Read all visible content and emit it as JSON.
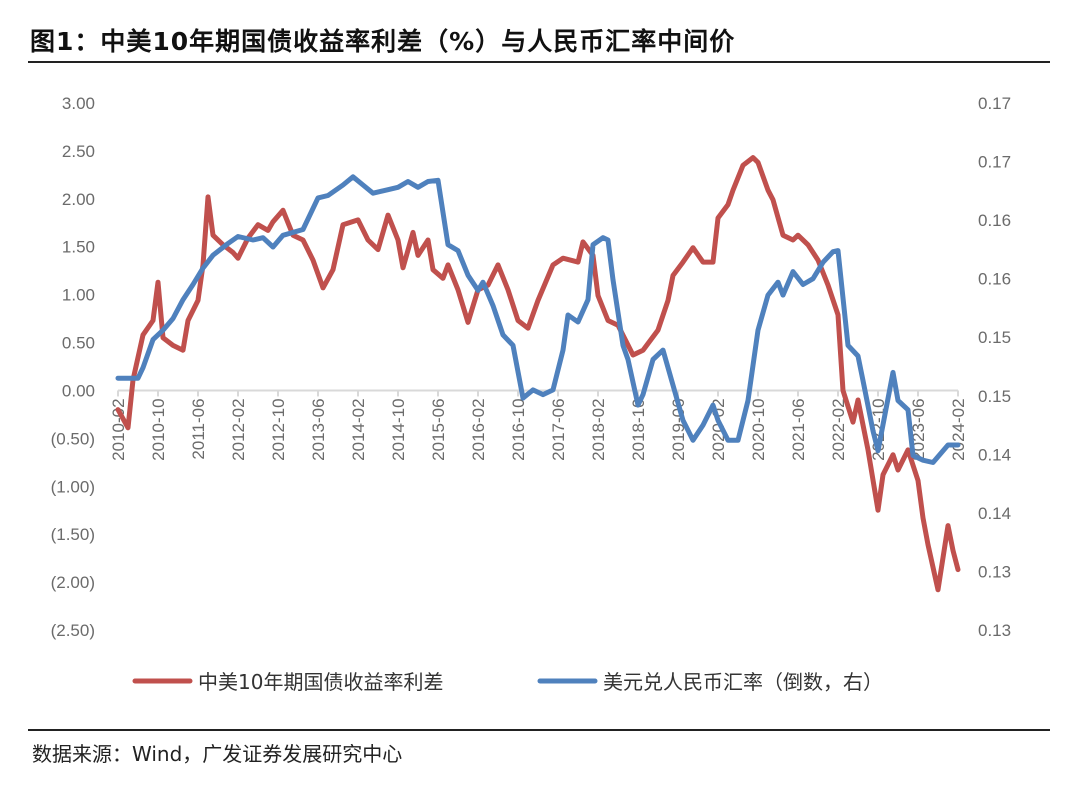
{
  "title": "图1：中美10年期国债收益率利差（%）与人民币汇率中间价",
  "source": "数据来源：Wind，广发证券发展研究中心",
  "chart_data": {
    "type": "line",
    "title": "",
    "xlabel": "",
    "ylabel": "",
    "grid": false,
    "legend_position": "bottom",
    "x_ticks": [
      "2010-02",
      "2010-10",
      "2011-06",
      "2012-02",
      "2012-10",
      "2013-06",
      "2014-02",
      "2014-10",
      "2015-06",
      "2016-02",
      "2016-10",
      "2017-06",
      "2018-02",
      "2018-10",
      "2019-06",
      "2020-02",
      "2020-10",
      "2021-06",
      "2022-02",
      "2022-10",
      "2023-06",
      "2024-02"
    ],
    "y_left": {
      "ylim": [
        -2.5,
        3.0
      ],
      "tick_labels": [
        "3.00",
        "2.50",
        "2.00",
        "1.50",
        "1.00",
        "0.50",
        "0.00",
        "(0.50)",
        "(1.00)",
        "(1.50)",
        "(2.00)",
        "(2.50)"
      ]
    },
    "y_right": {
      "ylim": [
        0.125,
        0.17
      ],
      "tick_labels": [
        "0.17",
        "0.17",
        "0.16",
        "0.16",
        "0.15",
        "0.15",
        "0.14",
        "0.14",
        "0.13",
        "0.13"
      ]
    },
    "series": [
      {
        "name": "中美10年期国债收益率利差",
        "axis": "left",
        "color": "#c0504d",
        "points": [
          [
            "2010-02",
            -0.2
          ],
          [
            "2010-04",
            -0.39
          ],
          [
            "2010-05",
            0.11
          ],
          [
            "2010-07",
            0.58
          ],
          [
            "2010-09",
            0.73
          ],
          [
            "2010-10",
            1.13
          ],
          [
            "2010-11",
            0.55
          ],
          [
            "2011-01",
            0.47
          ],
          [
            "2011-03",
            0.42
          ],
          [
            "2011-04",
            0.73
          ],
          [
            "2011-06",
            0.94
          ],
          [
            "2011-07",
            1.31
          ],
          [
            "2011-08",
            2.02
          ],
          [
            "2011-09",
            1.62
          ],
          [
            "2011-11",
            1.52
          ],
          [
            "2012-01",
            1.44
          ],
          [
            "2012-02",
            1.38
          ],
          [
            "2012-04",
            1.59
          ],
          [
            "2012-06",
            1.73
          ],
          [
            "2012-08",
            1.67
          ],
          [
            "2012-09",
            1.76
          ],
          [
            "2012-11",
            1.88
          ],
          [
            "2013-01",
            1.62
          ],
          [
            "2013-03",
            1.57
          ],
          [
            "2013-05",
            1.36
          ],
          [
            "2013-07",
            1.07
          ],
          [
            "2013-09",
            1.26
          ],
          [
            "2013-11",
            1.73
          ],
          [
            "2014-02",
            1.78
          ],
          [
            "2014-04",
            1.57
          ],
          [
            "2014-06",
            1.47
          ],
          [
            "2014-08",
            1.83
          ],
          [
            "2014-10",
            1.57
          ],
          [
            "2014-11",
            1.28
          ],
          [
            "2015-01",
            1.65
          ],
          [
            "2015-02",
            1.41
          ],
          [
            "2015-04",
            1.57
          ],
          [
            "2015-05",
            1.26
          ],
          [
            "2015-07",
            1.17
          ],
          [
            "2015-08",
            1.31
          ],
          [
            "2015-10",
            1.05
          ],
          [
            "2015-12",
            0.71
          ],
          [
            "2016-02",
            1.05
          ],
          [
            "2016-04",
            1.1
          ],
          [
            "2016-06",
            1.31
          ],
          [
            "2016-08",
            1.05
          ],
          [
            "2016-10",
            0.73
          ],
          [
            "2016-12",
            0.65
          ],
          [
            "2017-02",
            0.94
          ],
          [
            "2017-05",
            1.31
          ],
          [
            "2017-07",
            1.38
          ],
          [
            "2017-10",
            1.34
          ],
          [
            "2017-11",
            1.55
          ],
          [
            "2018-01",
            1.41
          ],
          [
            "2018-02",
            0.99
          ],
          [
            "2018-04",
            0.73
          ],
          [
            "2018-06",
            0.68
          ],
          [
            "2018-09",
            0.37
          ],
          [
            "2018-11",
            0.42
          ],
          [
            "2019-02",
            0.63
          ],
          [
            "2019-04",
            0.94
          ],
          [
            "2019-05",
            1.2
          ],
          [
            "2019-07",
            1.34
          ],
          [
            "2019-09",
            1.49
          ],
          [
            "2019-11",
            1.34
          ],
          [
            "2020-01",
            1.34
          ],
          [
            "2020-02",
            1.8
          ],
          [
            "2020-04",
            1.94
          ],
          [
            "2020-05",
            2.09
          ],
          [
            "2020-07",
            2.35
          ],
          [
            "2020-09",
            2.43
          ],
          [
            "2020-10",
            2.38
          ],
          [
            "2020-12",
            2.09
          ],
          [
            "2021-01",
            1.99
          ],
          [
            "2021-03",
            1.62
          ],
          [
            "2021-05",
            1.57
          ],
          [
            "2021-06",
            1.62
          ],
          [
            "2021-08",
            1.52
          ],
          [
            "2021-10",
            1.36
          ],
          [
            "2021-12",
            1.1
          ],
          [
            "2022-02",
            0.79
          ],
          [
            "2022-03",
            0.0
          ],
          [
            "2022-05",
            -0.33
          ],
          [
            "2022-06",
            -0.1
          ],
          [
            "2022-08",
            -0.62
          ],
          [
            "2022-10",
            -1.25
          ],
          [
            "2022-11",
            -0.88
          ],
          [
            "2023-01",
            -0.67
          ],
          [
            "2023-02",
            -0.83
          ],
          [
            "2023-04",
            -0.62
          ],
          [
            "2023-06",
            -0.94
          ],
          [
            "2023-07",
            -1.33
          ],
          [
            "2023-08",
            -1.61
          ],
          [
            "2023-10",
            -2.08
          ],
          [
            "2023-12",
            -1.41
          ],
          [
            "2024-01",
            -1.67
          ],
          [
            "2024-02",
            -1.87
          ]
        ]
      },
      {
        "name": "美元兑人民币汇率（倒数，右）",
        "axis": "right",
        "color": "#4f81bd",
        "points": [
          [
            "2010-02",
            0.1465
          ],
          [
            "2010-06",
            0.1465
          ],
          [
            "2010-07",
            0.1474
          ],
          [
            "2010-09",
            0.1498
          ],
          [
            "2010-11",
            0.1506
          ],
          [
            "2011-01",
            0.1516
          ],
          [
            "2011-03",
            0.1532
          ],
          [
            "2011-05",
            0.1545
          ],
          [
            "2011-07",
            0.1559
          ],
          [
            "2011-09",
            0.157
          ],
          [
            "2011-12",
            0.158
          ],
          [
            "2012-02",
            0.1586
          ],
          [
            "2012-05",
            0.1583
          ],
          [
            "2012-07",
            0.1585
          ],
          [
            "2012-09",
            0.1577
          ],
          [
            "2012-11",
            0.1587
          ],
          [
            "2013-03",
            0.1592
          ],
          [
            "2013-06",
            0.1619
          ],
          [
            "2013-08",
            0.1621
          ],
          [
            "2013-11",
            0.163
          ],
          [
            "2014-01",
            0.1637
          ],
          [
            "2014-03",
            0.163
          ],
          [
            "2014-05",
            0.1623
          ],
          [
            "2014-08",
            0.1626
          ],
          [
            "2014-10",
            0.1628
          ],
          [
            "2014-12",
            0.1633
          ],
          [
            "2015-02",
            0.1628
          ],
          [
            "2015-04",
            0.1633
          ],
          [
            "2015-06",
            0.1634
          ],
          [
            "2015-08",
            0.1579
          ],
          [
            "2015-10",
            0.1574
          ],
          [
            "2015-12",
            0.1553
          ],
          [
            "2016-02",
            0.154
          ],
          [
            "2016-03",
            0.1547
          ],
          [
            "2016-05",
            0.1527
          ],
          [
            "2016-07",
            0.1502
          ],
          [
            "2016-09",
            0.1493
          ],
          [
            "2016-11",
            0.1448
          ],
          [
            "2017-01",
            0.1455
          ],
          [
            "2017-03",
            0.1451
          ],
          [
            "2017-05",
            0.1455
          ],
          [
            "2017-07",
            0.1489
          ],
          [
            "2017-08",
            0.1519
          ],
          [
            "2017-10",
            0.1513
          ],
          [
            "2017-12",
            0.1532
          ],
          [
            "2018-01",
            0.1579
          ],
          [
            "2018-03",
            0.1585
          ],
          [
            "2018-04",
            0.1583
          ],
          [
            "2018-05",
            0.1549
          ],
          [
            "2018-07",
            0.1493
          ],
          [
            "2018-08",
            0.1481
          ],
          [
            "2018-10",
            0.1442
          ],
          [
            "2018-11",
            0.1451
          ],
          [
            "2019-01",
            0.1481
          ],
          [
            "2019-03",
            0.1489
          ],
          [
            "2019-05",
            0.1459
          ],
          [
            "2019-07",
            0.1429
          ],
          [
            "2019-09",
            0.1412
          ],
          [
            "2019-11",
            0.1425
          ],
          [
            "2020-01",
            0.1442
          ],
          [
            "2020-02",
            0.1429
          ],
          [
            "2020-04",
            0.1412
          ],
          [
            "2020-06",
            0.1412
          ],
          [
            "2020-08",
            0.1446
          ],
          [
            "2020-10",
            0.1506
          ],
          [
            "2020-12",
            0.1536
          ],
          [
            "2021-02",
            0.1547
          ],
          [
            "2021-03",
            0.1536
          ],
          [
            "2021-05",
            0.1556
          ],
          [
            "2021-07",
            0.1545
          ],
          [
            "2021-09",
            0.155
          ],
          [
            "2021-11",
            0.1564
          ],
          [
            "2022-01",
            0.1573
          ],
          [
            "2022-02",
            0.1574
          ],
          [
            "2022-04",
            0.1493
          ],
          [
            "2022-06",
            0.1484
          ],
          [
            "2022-07",
            0.1463
          ],
          [
            "2022-09",
            0.142
          ],
          [
            "2022-10",
            0.1403
          ],
          [
            "2023-01",
            0.147
          ],
          [
            "2023-02",
            0.1446
          ],
          [
            "2023-04",
            0.1438
          ],
          [
            "2023-05",
            0.1399
          ],
          [
            "2023-07",
            0.1395
          ],
          [
            "2023-09",
            0.1393
          ],
          [
            "2023-12",
            0.1408
          ],
          [
            "2024-02",
            0.1408
          ]
        ]
      }
    ]
  }
}
